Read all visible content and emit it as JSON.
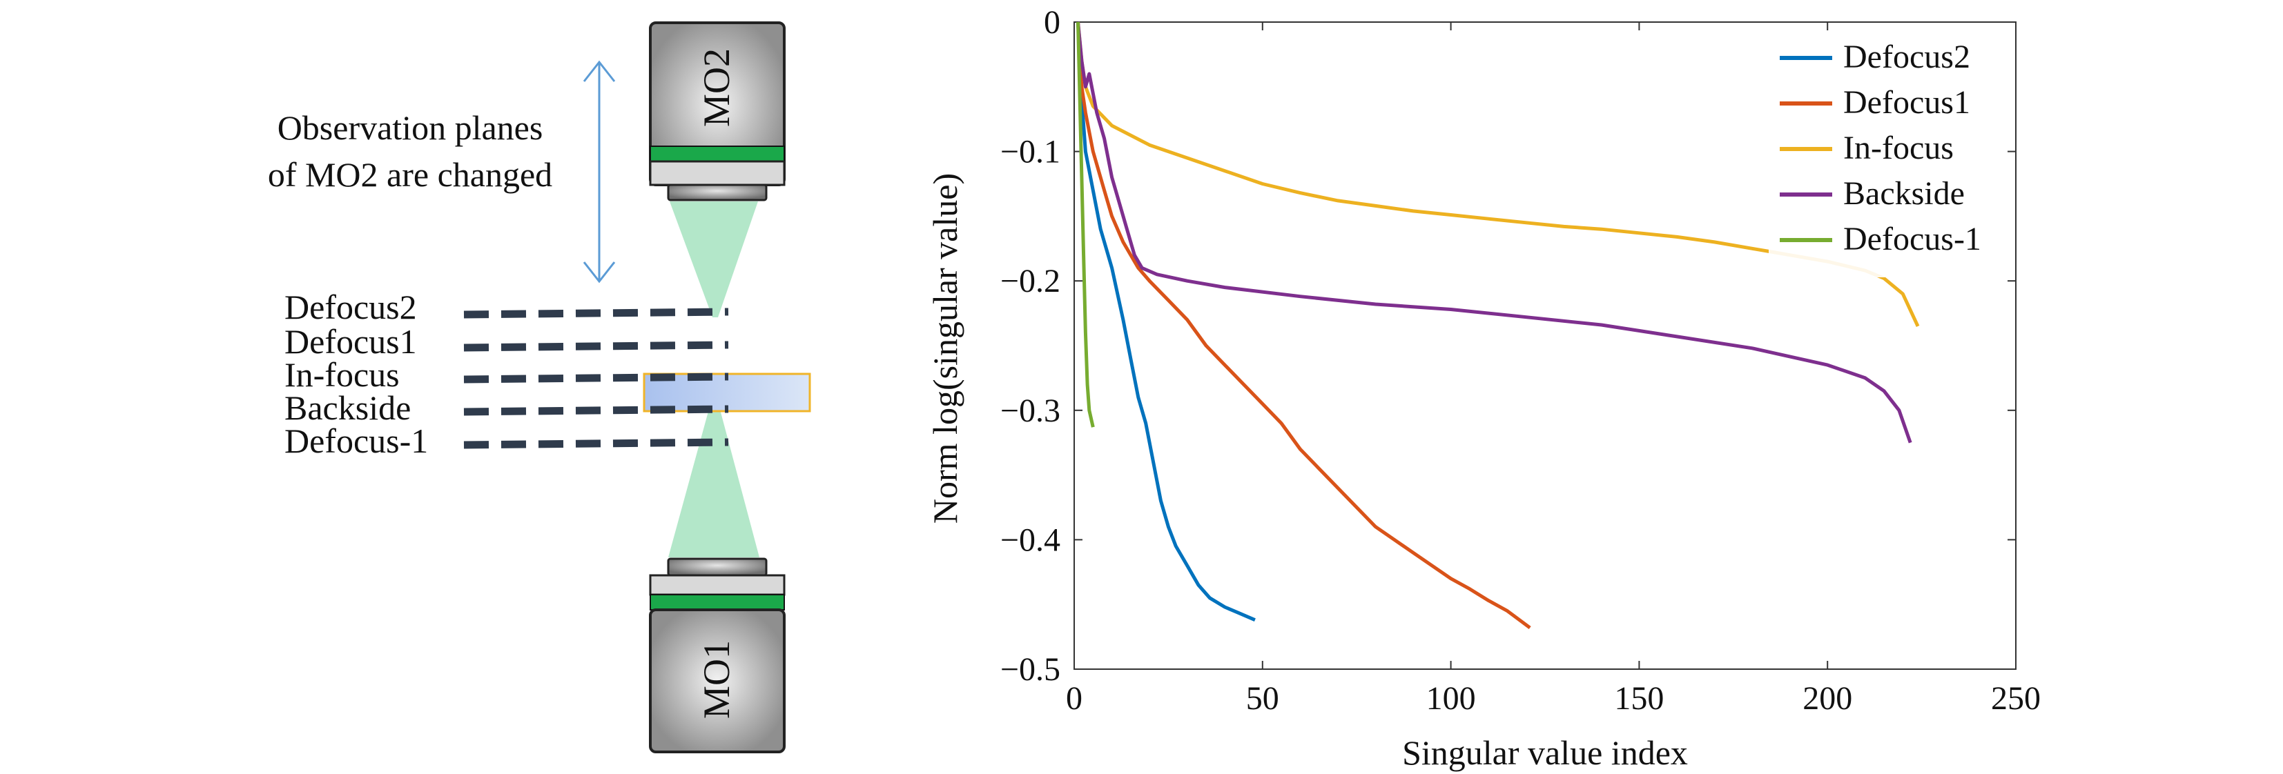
{
  "diagram": {
    "objective_top": "MO2",
    "objective_bottom": "MO1",
    "annotation_line1": "Observation planes",
    "annotation_line2": "of MO2 are changed",
    "planes": [
      "Defocus2",
      "Defocus1",
      "In-focus",
      "Backside",
      "Defocus-1"
    ]
  },
  "colors": {
    "Defocus2": "#0072BD",
    "Defocus1": "#D95319",
    "In-focus": "#EDB120",
    "Backside": "#7E2F8E",
    "Defocus-1": "#77AC30",
    "objective_band": "#1aa84a",
    "beam": "#a6e3c0",
    "sample_fill": "#c7d8f3",
    "sample_border": "#f0b429",
    "plane_dash": "#2f3b4c",
    "arrow": "#5b9bd5"
  },
  "chart_data": {
    "type": "line",
    "xlabel": "Singular value index",
    "ylabel": "Norm log(singular value)",
    "xlim": [
      0,
      250
    ],
    "ylim": [
      -0.5,
      0
    ],
    "xticks": [
      0,
      50,
      100,
      150,
      200,
      250
    ],
    "xtick_labels": [
      "0",
      "50",
      "100",
      "150",
      "200",
      "250"
    ],
    "yticks": [
      0,
      -0.1,
      -0.2,
      -0.3,
      -0.4,
      -0.5
    ],
    "ytick_labels": [
      "0",
      "−0.1",
      "−0.2",
      "−0.3",
      "−0.4",
      "−0.5"
    ],
    "legend_position": "top-right",
    "grid": false,
    "series": [
      {
        "name": "Defocus2",
        "x": [
          1,
          2,
          3,
          5,
          7,
          10,
          13,
          15,
          17,
          19,
          21,
          23,
          25,
          27,
          30,
          33,
          36,
          40,
          44,
          48
        ],
        "y": [
          0,
          -0.06,
          -0.1,
          -0.13,
          -0.16,
          -0.19,
          -0.23,
          -0.26,
          -0.29,
          -0.31,
          -0.34,
          -0.37,
          -0.39,
          -0.405,
          -0.42,
          -0.435,
          -0.445,
          -0.452,
          -0.457,
          -0.462
        ]
      },
      {
        "name": "Defocus1",
        "x": [
          1,
          2,
          3,
          5,
          8,
          10,
          13,
          17,
          20,
          25,
          30,
          35,
          40,
          45,
          50,
          55,
          60,
          65,
          70,
          75,
          80,
          85,
          90,
          95,
          100,
          105,
          110,
          115,
          121
        ],
        "y": [
          0,
          -0.05,
          -0.07,
          -0.1,
          -0.13,
          -0.15,
          -0.17,
          -0.19,
          -0.2,
          -0.215,
          -0.23,
          -0.25,
          -0.265,
          -0.28,
          -0.295,
          -0.31,
          -0.33,
          -0.345,
          -0.36,
          -0.375,
          -0.39,
          -0.4,
          -0.41,
          -0.42,
          -0.43,
          -0.438,
          -0.447,
          -0.455,
          -0.468
        ]
      },
      {
        "name": "In-focus",
        "x": [
          1,
          2,
          3,
          5,
          10,
          20,
          30,
          40,
          50,
          60,
          70,
          80,
          90,
          100,
          110,
          120,
          130,
          140,
          150,
          160,
          170,
          180,
          186,
          190,
          200,
          210,
          215,
          220,
          224
        ],
        "y": [
          0,
          -0.03,
          -0.05,
          -0.065,
          -0.08,
          -0.095,
          -0.105,
          -0.115,
          -0.125,
          -0.132,
          -0.138,
          -0.142,
          -0.146,
          -0.149,
          -0.152,
          -0.155,
          -0.158,
          -0.16,
          -0.163,
          -0.166,
          -0.17,
          -0.175,
          -0.178,
          -0.18,
          -0.185,
          -0.192,
          -0.198,
          -0.21,
          -0.235
        ]
      },
      {
        "name": "Backside",
        "x": [
          1,
          2,
          3,
          4,
          6,
          8,
          10,
          12,
          14,
          16,
          18,
          22,
          30,
          40,
          60,
          80,
          100,
          120,
          140,
          160,
          180,
          200,
          210,
          215,
          219,
          222
        ],
        "y": [
          0,
          -0.03,
          -0.05,
          -0.04,
          -0.07,
          -0.09,
          -0.12,
          -0.14,
          -0.16,
          -0.18,
          -0.19,
          -0.195,
          -0.2,
          -0.205,
          -0.212,
          -0.218,
          -0.222,
          -0.228,
          -0.234,
          -0.243,
          -0.252,
          -0.265,
          -0.275,
          -0.285,
          -0.3,
          -0.325
        ]
      },
      {
        "name": "Defocus-1",
        "x": [
          1,
          1.5,
          2,
          2.5,
          3,
          3.5,
          4,
          5
        ],
        "y": [
          0,
          -0.06,
          -0.12,
          -0.18,
          -0.24,
          -0.28,
          -0.3,
          -0.313
        ]
      }
    ]
  }
}
